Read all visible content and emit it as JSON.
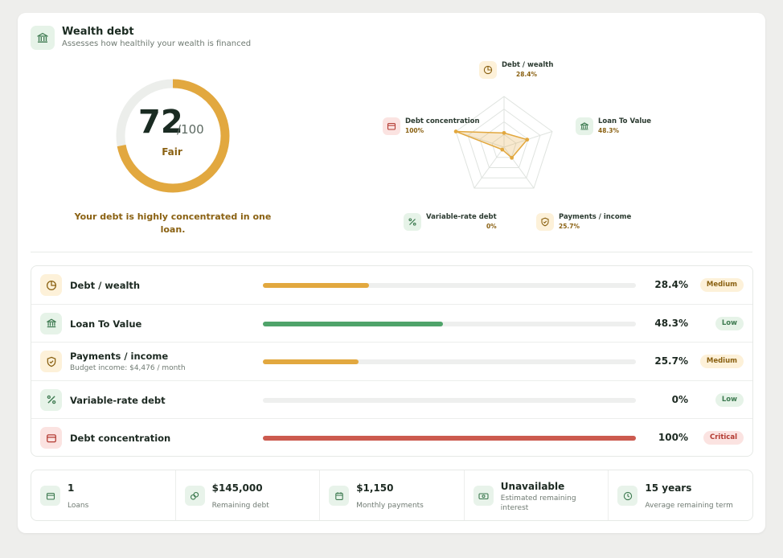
{
  "header": {
    "title": "Wealth debt",
    "subtitle": "Assesses how healthily your wealth is financed",
    "icon": "bank-icon"
  },
  "score": {
    "value": "72",
    "max": "/100",
    "label": "Fair",
    "fraction": 0.72,
    "message": "Your debt is highly concentrated in one loan."
  },
  "radar": {
    "axes": [
      {
        "name": "Debt / wealth",
        "value": "28.4%",
        "score": 0.28
      },
      {
        "name": "Loan To Value",
        "value": "48.3%",
        "score": 0.48
      },
      {
        "name": "Payments / income",
        "value": "25.7%",
        "score": 0.26
      },
      {
        "name": "Variable-rate debt",
        "value": "0%",
        "score": 0.0
      },
      {
        "name": "Debt concentration",
        "value": "100%",
        "score": 1.0
      }
    ]
  },
  "metrics": [
    {
      "name": "Debt / wealth",
      "sub": "",
      "value": "28.4%",
      "fraction": 0.284,
      "badge": "Medium",
      "icon": "pie-chart-icon"
    },
    {
      "name": "Loan To Value",
      "sub": "",
      "value": "48.3%",
      "fraction": 0.483,
      "badge": "Low",
      "icon": "bank-icon"
    },
    {
      "name": "Payments / income",
      "sub": "Budget income: $4,476 / month",
      "value": "25.7%",
      "fraction": 0.257,
      "badge": "Medium",
      "icon": "shield-icon"
    },
    {
      "name": "Variable-rate debt",
      "sub": "",
      "value": "0%",
      "fraction": 0.0,
      "badge": "Low",
      "icon": "percent-icon"
    },
    {
      "name": "Debt concentration",
      "sub": "",
      "value": "100%",
      "fraction": 1.0,
      "badge": "Critical",
      "icon": "wallet-icon"
    }
  ],
  "stats": [
    {
      "value": "1",
      "label": "Loans",
      "icon": "wallet-icon"
    },
    {
      "value": "$145,000",
      "label": "Remaining debt",
      "icon": "coins-icon"
    },
    {
      "value": "$1,150",
      "label": "Monthly payments",
      "icon": "calendar-icon"
    },
    {
      "value": "Unavailable",
      "label": "Estimated remaining interest",
      "icon": "banknote-icon"
    },
    {
      "value": "15 years",
      "label": "Average remaining term",
      "icon": "clock-icon"
    }
  ],
  "colors": {
    "amber": "#e2a83f",
    "green": "#4fa36a",
    "red": "#cc5a4f",
    "track": "#eeefee",
    "badge_medium_bg": "#fdf1d9",
    "badge_medium_fg": "#8a6112",
    "badge_low_bg": "#e6f3e8",
    "badge_low_fg": "#3d7a50",
    "badge_critical_bg": "#fbe3e1",
    "badge_critical_fg": "#b33b32"
  }
}
